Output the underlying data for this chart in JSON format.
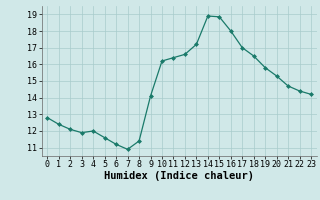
{
  "x": [
    0,
    1,
    2,
    3,
    4,
    5,
    6,
    7,
    8,
    9,
    10,
    11,
    12,
    13,
    14,
    15,
    16,
    17,
    18,
    19,
    20,
    21,
    22,
    23
  ],
  "y": [
    12.8,
    12.4,
    12.1,
    11.9,
    12.0,
    11.6,
    11.2,
    10.9,
    11.4,
    14.1,
    16.2,
    16.4,
    16.6,
    17.2,
    18.9,
    18.85,
    18.0,
    17.0,
    16.5,
    15.8,
    15.3,
    14.7,
    14.4,
    14.2
  ],
  "xlabel": "Humidex (Indice chaleur)",
  "ylabel": "",
  "xlim": [
    -0.5,
    23.5
  ],
  "ylim": [
    10.5,
    19.5
  ],
  "yticks": [
    11,
    12,
    13,
    14,
    15,
    16,
    17,
    18,
    19
  ],
  "xticks": [
    0,
    1,
    2,
    3,
    4,
    5,
    6,
    7,
    8,
    9,
    10,
    11,
    12,
    13,
    14,
    15,
    16,
    17,
    18,
    19,
    20,
    21,
    22,
    23
  ],
  "line_color": "#1a7a6a",
  "marker_color": "#1a7a6a",
  "bg_color": "#d0e8e8",
  "grid_color": "#a8cccc",
  "xlabel_fontsize": 7.5,
  "tick_fontsize": 6.0
}
